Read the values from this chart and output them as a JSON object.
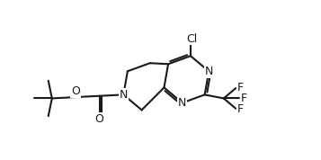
{
  "bg": "#ffffff",
  "lc": "#1a1a1a",
  "lw": 1.5,
  "fs": 9.0,
  "figsize": [
    3.57,
    1.78
  ],
  "dpi": 100,
  "xlim": [
    0.5,
    9.5
  ],
  "ylim": [
    0.2,
    5.4
  ]
}
